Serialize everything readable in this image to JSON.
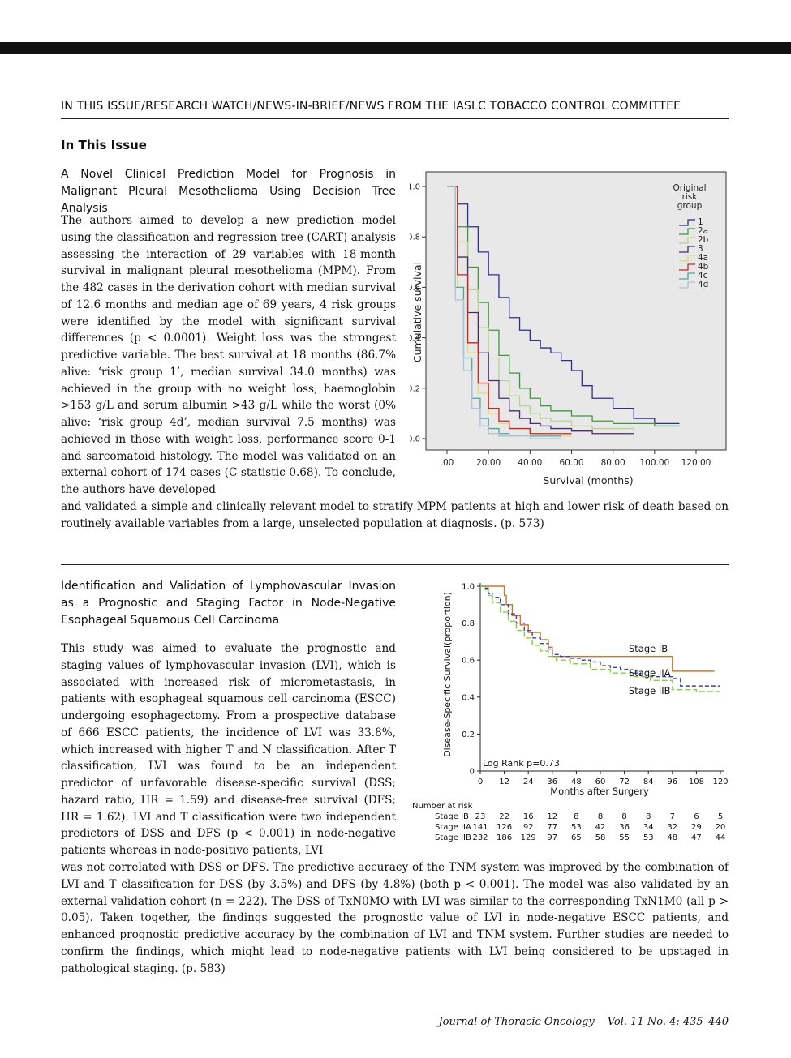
{
  "header": {
    "running_title": "IN THIS ISSUE/RESEARCH WATCH/NEWS-IN-BRIEF/NEWS FROM THE IASLC TOBACCO CONTROL COMMITTEE"
  },
  "section_title": "In This Issue",
  "article1": {
    "title": "A Novel Clinical Prediction Model for Prognosis in Malignant Pleural Mesothelioma Using Decision Tree Analysis",
    "body_column": "The authors aimed to develop a new prediction model using the classification and regression tree (CART) analysis assessing the interaction of 29 variables with 18-month survival in malignant pleural mesothelioma (MPM). From the 482 cases in the derivation cohort with median survival of 12.6 months and median age of 69 years, 4 risk groups were identified by the model with significant survival differences (p < 0.0001). Weight loss was the strongest predictive variable. The best survival at 18 months (86.7% alive: ‘risk group 1’, median survival 34.0 months) was achieved in the group with no weight loss, haemoglobin >153 g/L and serum albumin >43 g/L while the worst (0% alive: ‘risk group 4d’, median survival 7.5 months) was achieved in those with weight loss, performance score 0-1 and sarcomatoid histology. The model was validated on an external cohort of 174 cases (C-statistic 0.68). To conclude, the authors have developed",
    "body_full": "and validated a simple and clinically relevant model to stratify MPM patients at high and lower risk of death based on routinely available variables from a large, unselected population at diagnosis. (p. 573)"
  },
  "article2": {
    "title": "Identification and Validation of Lymphovascular Invasion as a Prognostic and Staging Factor in Node-Negative Esophageal Squamous Cell Carcinoma",
    "body_column": "This study was aimed to evaluate the prognostic and staging values of lymphovascular invasion (LVI), which is associated with increased risk of micrometastasis, in patients with esophageal squamous cell carcinoma (ESCC) undergoing esophagectomy. From a prospective database of 666 ESCC patients, the incidence of LVI was 33.8%, which increased with higher T and N classification. After T classification, LVI was found to be an independent predictor of unfavorable disease-specific survival (DSS; hazard ratio, HR = 1.59) and disease-free survival (DFS; HR = 1.62). LVI and T classification were two independent predictors of DSS and DFS (p < 0.001) in node-negative patients whereas in node-positive patients, LVI",
    "body_full": "was not correlated with DSS or DFS. The predictive accuracy of the TNM system was improved by the combination of LVI and T classification for DSS (by 3.5%) and DFS (by 4.8%) (both p < 0.001). The model was also validated by an external validation cohort (n = 222). The DSS of TxN0MO with LVI was similar to the corresponding TxN1M0 (all p > 0.05). Taken together, the findings suggested the prognostic value of LVI in node-negative ESCC patients, and enhanced prognostic predictive accuracy by the combination of LVI and TNM system. Further studies are needed to confirm the findings, which might lead to node-negative patients with LVI being considered to be upstaged in pathological staging. (p. 583)"
  },
  "footer": {
    "journal": "Journal of Thoracic Oncology",
    "volume": "Vol. 11 No. 4: 435–440"
  },
  "chart_data": [
    {
      "type": "line",
      "xlabel": "Survival (months)",
      "ylabel": "Cumulative survival",
      "xlim": [
        0,
        120
      ],
      "ylim": [
        0,
        1
      ],
      "x_ticks": [
        ".00",
        "20.00",
        "40.00",
        "60.00",
        "80.00",
        "100.00",
        "120.00"
      ],
      "y_ticks": [
        "0.0",
        "0.2",
        "0.4",
        "0.6",
        "0.8",
        "1.0"
      ],
      "legend_title": "Original risk group",
      "legend_title_lines": [
        "Original",
        "risk",
        "group"
      ],
      "legend_placement": "top-right",
      "series": [
        {
          "name": "1",
          "color": "#2b2f8f",
          "x": [
            0,
            5,
            10,
            15,
            20,
            25,
            30,
            35,
            40,
            45,
            50,
            55,
            60,
            65,
            70,
            80,
            90,
            100,
            112
          ],
          "y": [
            1,
            0.93,
            0.84,
            0.74,
            0.65,
            0.56,
            0.48,
            0.43,
            0.39,
            0.36,
            0.34,
            0.31,
            0.27,
            0.21,
            0.16,
            0.12,
            0.08,
            0.06,
            0.06
          ]
        },
        {
          "name": "2a",
          "color": "#3a9a3a",
          "x": [
            0,
            5,
            10,
            15,
            20,
            25,
            30,
            35,
            40,
            45,
            50,
            60,
            70,
            80,
            90,
            100,
            112
          ],
          "y": [
            1,
            0.84,
            0.68,
            0.54,
            0.43,
            0.33,
            0.26,
            0.2,
            0.16,
            0.13,
            0.11,
            0.09,
            0.07,
            0.06,
            0.06,
            0.05,
            0.05
          ]
        },
        {
          "name": "2b",
          "color": "#b8d28a",
          "x": [
            0,
            5,
            10,
            15,
            20,
            25,
            30,
            35,
            40,
            45,
            50,
            60,
            70,
            80,
            90
          ],
          "y": [
            1,
            0.78,
            0.59,
            0.44,
            0.32,
            0.23,
            0.17,
            0.13,
            0.1,
            0.08,
            0.07,
            0.05,
            0.04,
            0.04,
            0.04
          ]
        },
        {
          "name": "3",
          "color": "#4a2a6e",
          "x": [
            0,
            5,
            10,
            15,
            20,
            25,
            30,
            35,
            40,
            45,
            50,
            60,
            70,
            80,
            90
          ],
          "y": [
            1,
            0.72,
            0.5,
            0.34,
            0.23,
            0.16,
            0.11,
            0.08,
            0.06,
            0.05,
            0.04,
            0.03,
            0.02,
            0.02,
            0.02
          ]
        },
        {
          "name": "4a",
          "color": "#d8e070",
          "x": [
            0,
            5,
            10,
            15,
            20,
            25,
            30,
            40,
            50,
            60
          ],
          "y": [
            1,
            0.6,
            0.34,
            0.18,
            0.1,
            0.06,
            0.04,
            0.02,
            0.01,
            0.01
          ]
        },
        {
          "name": "4b",
          "color": "#cc2222",
          "x": [
            0,
            5,
            10,
            15,
            20,
            25,
            30,
            40,
            50,
            60
          ],
          "y": [
            1,
            0.65,
            0.38,
            0.22,
            0.12,
            0.07,
            0.04,
            0.02,
            0.02,
            0.02
          ]
        },
        {
          "name": "4c",
          "color": "#4aa89a",
          "x": [
            0,
            4,
            8,
            12,
            16,
            20,
            25,
            30,
            40,
            55
          ],
          "y": [
            1,
            0.6,
            0.32,
            0.16,
            0.08,
            0.04,
            0.02,
            0.01,
            0.01,
            0.01
          ]
        },
        {
          "name": "4d",
          "color": "#a9c4dc",
          "x": [
            0,
            4,
            8,
            12,
            16,
            20,
            25,
            30,
            40,
            55
          ],
          "y": [
            1,
            0.55,
            0.27,
            0.12,
            0.05,
            0.02,
            0.01,
            0.01,
            0,
            0
          ]
        }
      ]
    },
    {
      "type": "line",
      "xlabel": "Months after Surgery",
      "ylabel": "Disease-Specific Survival(proportion)",
      "xlim": [
        0,
        120
      ],
      "ylim": [
        0,
        1
      ],
      "x_ticks": [
        "0",
        "12",
        "24",
        "36",
        "48",
        "60",
        "72",
        "84",
        "96",
        "108",
        "120"
      ],
      "y_ticks": [
        "0",
        "0.2",
        "0.4",
        "0.6",
        "0.8",
        "1.0"
      ],
      "annotation": "Log Rank p=0.73",
      "series": [
        {
          "name": "Stage IB",
          "color": "#d0761e",
          "x": [
            0,
            12,
            12,
            13,
            16,
            20,
            24,
            30,
            34,
            36,
            40,
            96,
            96,
            117
          ],
          "y": [
            1,
            1,
            0.95,
            0.9,
            0.84,
            0.79,
            0.75,
            0.71,
            0.67,
            0.62,
            0.62,
            0.62,
            0.54,
            0.54
          ]
        },
        {
          "name": "Stage IIA",
          "color": "#3a3ad0",
          "x": [
            0,
            2,
            4,
            6,
            10,
            14,
            18,
            22,
            26,
            30,
            34,
            36,
            40,
            45,
            50,
            55,
            60,
            65,
            70,
            75,
            80,
            85,
            90,
            96,
            100,
            108,
            120
          ],
          "y": [
            1,
            0.99,
            0.96,
            0.94,
            0.9,
            0.85,
            0.8,
            0.76,
            0.72,
            0.69,
            0.66,
            0.63,
            0.62,
            0.61,
            0.6,
            0.59,
            0.57,
            0.56,
            0.55,
            0.53,
            0.52,
            0.51,
            0.51,
            0.5,
            0.46,
            0.46,
            0.46
          ]
        },
        {
          "name": "Stage IIB",
          "color": "#7fd633",
          "x": [
            0,
            2,
            4,
            6,
            10,
            14,
            18,
            22,
            26,
            30,
            34,
            38,
            45,
            55,
            65,
            75,
            85,
            96,
            108,
            120
          ],
          "y": [
            1,
            0.98,
            0.95,
            0.91,
            0.86,
            0.81,
            0.76,
            0.72,
            0.68,
            0.65,
            0.62,
            0.6,
            0.58,
            0.55,
            0.53,
            0.51,
            0.49,
            0.44,
            0.43,
            0.43
          ]
        }
      ],
      "risk_table": {
        "title": "Number at risk",
        "rows": [
          {
            "label": "Stage IB",
            "values": [
              23,
              22,
              16,
              12,
              8,
              8,
              8,
              8,
              7,
              6,
              5
            ]
          },
          {
            "label": "Stage IIA",
            "values": [
              141,
              126,
              92,
              77,
              53,
              42,
              36,
              34,
              32,
              29,
              20
            ]
          },
          {
            "label": "Stage IIB",
            "values": [
              232,
              186,
              129,
              97,
              65,
              58,
              55,
              53,
              48,
              47,
              44
            ]
          }
        ]
      }
    }
  ]
}
